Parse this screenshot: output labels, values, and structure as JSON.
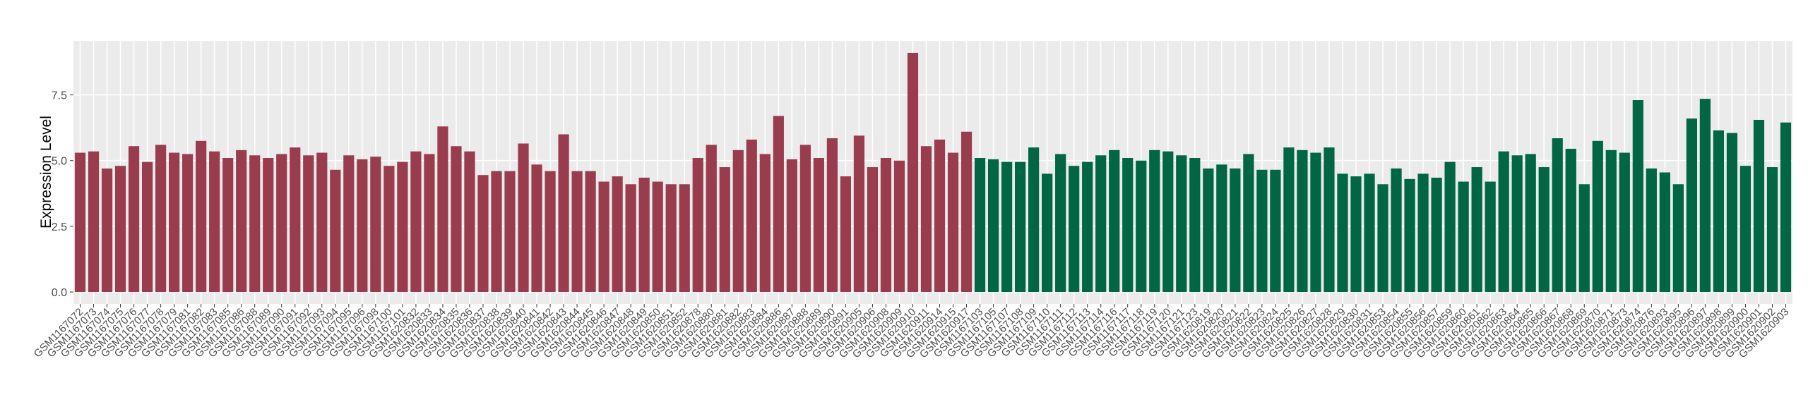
{
  "chart_data": {
    "type": "bar",
    "ylabel": "Expression Level",
    "ylim": [
      -0.455,
      9.555
    ],
    "yticks": [
      {
        "value": 0,
        "label": "0.0"
      },
      2.5,
      {
        "value": 5,
        "label": "5.0"
      },
      7.5
    ],
    "grid": true,
    "groups": [
      {
        "color": "#993d4e",
        "categories": [
          "GSM1167072",
          "GSM1167073",
          "GSM1167074",
          "GSM1167075",
          "GSM1167076",
          "GSM1167077",
          "GSM1167078",
          "GSM1167079",
          "GSM1167081",
          "GSM1167082",
          "GSM1167083",
          "GSM1167085",
          "GSM1167086",
          "GSM1167088",
          "GSM1167089",
          "GSM1167090",
          "GSM1167091",
          "GSM1167092",
          "GSM1167093",
          "GSM1167094",
          "GSM1167095",
          "GSM1167096",
          "GSM1167098",
          "GSM1167100",
          "GSM1167101",
          "GSM1620832",
          "GSM1620833",
          "GSM1620834",
          "GSM1620835",
          "GSM1620836",
          "GSM1620837",
          "GSM1620838",
          "GSM1620839",
          "GSM1620840",
          "GSM1620841",
          "GSM1620842",
          "GSM1620843",
          "GSM1620844",
          "GSM1620845",
          "GSM1620846",
          "GSM1620847",
          "GSM1620848",
          "GSM1620849",
          "GSM1620850",
          "GSM1620851",
          "GSM1620852",
          "GSM1620878",
          "GSM1620880",
          "GSM1620881",
          "GSM1620882",
          "GSM1620883",
          "GSM1620884",
          "GSM1620886",
          "GSM1620887",
          "GSM1620888",
          "GSM1620889",
          "GSM1620890",
          "GSM1620891",
          "GSM1620905",
          "GSM1620906",
          "GSM1620908",
          "GSM1620909",
          "GSM1620910",
          "GSM1620911",
          "GSM1620914",
          "GSM1620915",
          "GSM1620917"
        ],
        "values": [
          5.3,
          5.35,
          4.7,
          4.8,
          5.55,
          4.95,
          5.6,
          5.3,
          5.25,
          5.75,
          5.35,
          5.1,
          5.4,
          5.2,
          5.1,
          5.25,
          5.5,
          5.2,
          5.3,
          4.65,
          5.2,
          5.05,
          5.15,
          4.8,
          4.95,
          5.35,
          5.25,
          6.3,
          5.55,
          5.35,
          4.45,
          4.6,
          4.6,
          5.65,
          4.85,
          4.6,
          6.0,
          4.6,
          4.6,
          4.2,
          4.4,
          4.1,
          4.35,
          4.2,
          4.1,
          4.1,
          5.1,
          5.6,
          4.75,
          5.4,
          5.8,
          5.25,
          6.7,
          5.05,
          5.6,
          5.1,
          5.85,
          4.4,
          5.95,
          4.75,
          5.1,
          5.0,
          9.1,
          5.55,
          5.8,
          5.3,
          6.1
        ]
      },
      {
        "color": "#006644",
        "categories": [
          "GSM1167103",
          "GSM1167105",
          "GSM1167107",
          "GSM1167108",
          "GSM1167109",
          "GSM1167110",
          "GSM1167111",
          "GSM1167112",
          "GSM1167113",
          "GSM1167114",
          "GSM1167116",
          "GSM1167117",
          "GSM1167118",
          "GSM1167119",
          "GSM1167120",
          "GSM1167121",
          "GSM1167123",
          "GSM1620819",
          "GSM1620820",
          "GSM1620821",
          "GSM1620822",
          "GSM1620823",
          "GSM1620824",
          "GSM1620825",
          "GSM1620826",
          "GSM1620827",
          "GSM1620828",
          "GSM1620829",
          "GSM1620830",
          "GSM1620831",
          "GSM1620853",
          "GSM1620854",
          "GSM1620855",
          "GSM1620856",
          "GSM1620857",
          "GSM1620859",
          "GSM1620860",
          "GSM1620861",
          "GSM1620862",
          "GSM1620863",
          "GSM1620864",
          "GSM1620865",
          "GSM1620866",
          "GSM1620867",
          "GSM1620868",
          "GSM1620869",
          "GSM1620870",
          "GSM1620871",
          "GSM1620873",
          "GSM1620874",
          "GSM1620876",
          "GSM1620893",
          "GSM1620895",
          "GSM1620896",
          "GSM1620897",
          "GSM1620898",
          "GSM1620899",
          "GSM1620900",
          "GSM1620901",
          "GSM1620902",
          "GSM1620903"
        ],
        "values": [
          5.1,
          5.05,
          4.95,
          4.95,
          5.5,
          4.5,
          5.25,
          4.8,
          4.95,
          5.2,
          5.4,
          5.1,
          5.0,
          5.4,
          5.35,
          5.2,
          5.1,
          4.7,
          4.85,
          4.7,
          5.25,
          4.65,
          4.65,
          5.5,
          5.4,
          5.3,
          5.5,
          4.5,
          4.4,
          4.5,
          4.1,
          4.7,
          4.3,
          4.5,
          4.35,
          4.95,
          4.2,
          4.75,
          4.2,
          5.35,
          5.2,
          5.25,
          4.75,
          5.85,
          5.45,
          4.1,
          5.75,
          5.4,
          5.3,
          7.3,
          4.7,
          4.55,
          4.1,
          6.6,
          7.35,
          6.15,
          6.05,
          4.8,
          6.55,
          4.75,
          6.45
        ]
      }
    ]
  }
}
